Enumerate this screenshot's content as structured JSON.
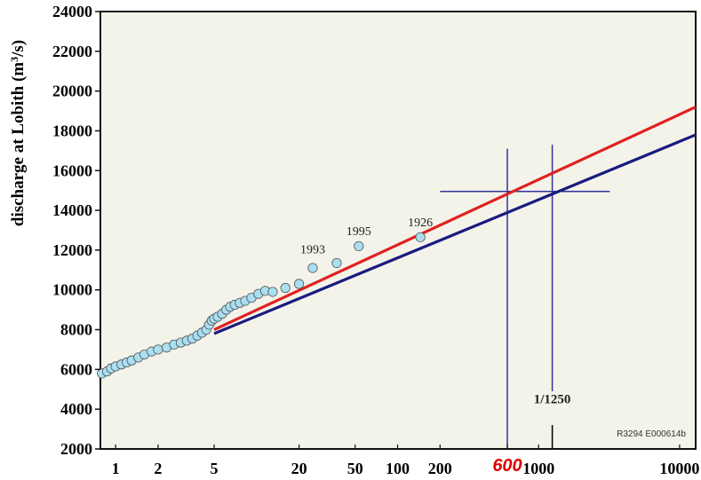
{
  "chart_data": {
    "type": "scatter",
    "ylabel": "discharge at Lobith (m³/s)",
    "ylabel_parts": [
      "discharge at Lobith (m",
      "3",
      "/s)"
    ],
    "ylim": [
      2000,
      24000
    ],
    "y_ticks": [
      2000,
      4000,
      6000,
      8000,
      10000,
      12000,
      14000,
      16000,
      18000,
      20000,
      22000,
      24000
    ],
    "x_scale": "log",
    "xlim": [
      0.78,
      13000
    ],
    "x_ticks": [
      {
        "value": 1,
        "label": "1"
      },
      {
        "value": 2,
        "label": "2"
      },
      {
        "value": 5,
        "label": "5"
      },
      {
        "value": 20,
        "label": "20"
      },
      {
        "value": 50,
        "label": "50"
      },
      {
        "value": 100,
        "label": "100"
      },
      {
        "value": 200,
        "label": "200"
      },
      {
        "value": 600,
        "label": "600",
        "highlight": true
      },
      {
        "value": 1000,
        "label": "1000"
      },
      {
        "value": 10000,
        "label": "10000"
      }
    ],
    "grid": false,
    "series": [
      {
        "kind": "points",
        "color": "#a9dff0",
        "stroke": "#555555",
        "points": [
          [
            0.8,
            5800
          ],
          [
            0.87,
            5900
          ],
          [
            0.93,
            6050
          ],
          [
            1.0,
            6150
          ],
          [
            1.1,
            6250
          ],
          [
            1.2,
            6350
          ],
          [
            1.3,
            6450
          ],
          [
            1.45,
            6600
          ],
          [
            1.6,
            6750
          ],
          [
            1.8,
            6900
          ],
          [
            2.0,
            7000
          ],
          [
            2.3,
            7100
          ],
          [
            2.6,
            7250
          ],
          [
            2.9,
            7350
          ],
          [
            3.2,
            7450
          ],
          [
            3.5,
            7550
          ],
          [
            3.8,
            7700
          ],
          [
            4.1,
            7850
          ],
          [
            4.4,
            8000
          ],
          [
            4.6,
            8250
          ],
          [
            4.8,
            8450
          ],
          [
            5.0,
            8550
          ],
          [
            5.3,
            8650
          ],
          [
            5.7,
            8800
          ],
          [
            6.1,
            9000
          ],
          [
            6.5,
            9150
          ],
          [
            7.0,
            9250
          ],
          [
            7.6,
            9350
          ],
          [
            8.3,
            9450
          ],
          [
            9.2,
            9600
          ],
          [
            10.3,
            9800
          ],
          [
            11.5,
            9950
          ],
          [
            13.0,
            9900
          ],
          [
            16.0,
            10100
          ],
          [
            20.0,
            10300
          ],
          [
            25.0,
            11100
          ],
          [
            37.0,
            11350
          ],
          [
            53.0,
            12200
          ],
          [
            145.0,
            12650
          ]
        ]
      },
      {
        "kind": "line",
        "color": "#e02020",
        "from": [
          5,
          8000
        ],
        "to": [
          13000,
          19200
        ]
      },
      {
        "kind": "line",
        "color": "#1a1a80",
        "from": [
          5,
          7800
        ],
        "to": [
          13000,
          17800
        ]
      }
    ],
    "annotations": [
      {
        "text": "1993",
        "x": 25,
        "y": 11850
      },
      {
        "text": "1995",
        "x": 53,
        "y": 12750
      },
      {
        "text": "1926",
        "x": 145,
        "y": 13200
      },
      {
        "text": "1/1250",
        "x": 1250,
        "y": 4300,
        "bold": true
      }
    ],
    "reference_lines": [
      {
        "orientation": "vertical",
        "x": 600,
        "y_from": 2000,
        "y_to": 17100,
        "color": "#33339a"
      },
      {
        "orientation": "vertical",
        "x": 1250,
        "y_from": 4900,
        "y_to": 17300,
        "color": "#33339a"
      },
      {
        "orientation": "horizontal",
        "y": 14950,
        "x_from": 200,
        "x_to": 3200,
        "color": "#33339a"
      }
    ],
    "tick_marks": [
      {
        "x": 1250,
        "y_from": 2000,
        "y_to": 3200,
        "color": "#000000"
      }
    ],
    "code_label": "R3294  E000614b"
  }
}
